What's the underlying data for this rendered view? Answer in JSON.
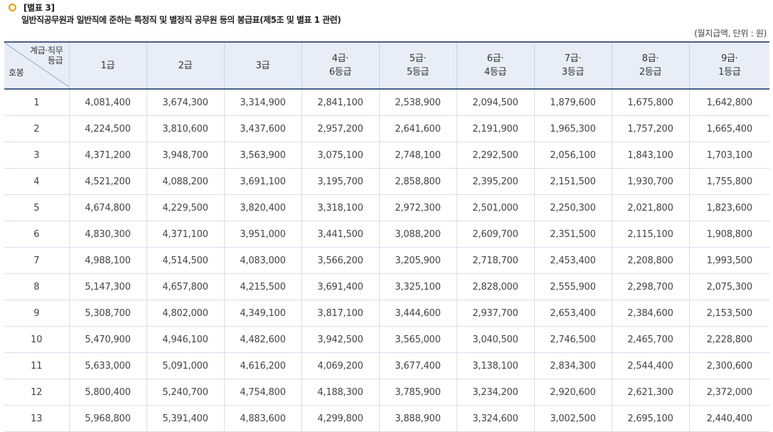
{
  "header": {
    "reference": "[별표 3]",
    "title": "일반직공무원과 일반직에 준하는 특정직 및 별정직 공무원 등의 봉급표(제5조 및 별표 1 관련)",
    "unit": "(월지급액, 단위 : 원)"
  },
  "colors": {
    "accent": "#f39800",
    "header_bg": "#e8eef8",
    "border_dark": "#4a5f8a"
  },
  "table": {
    "corner_top_line1": "계급·직무",
    "corner_top_line2": "등급",
    "corner_bottom": "호봉",
    "columns": [
      [
        "1급",
        ""
      ],
      [
        "2급",
        ""
      ],
      [
        "3급",
        ""
      ],
      [
        "4급·",
        "6등급"
      ],
      [
        "5급·",
        "5등급"
      ],
      [
        "6급·",
        "4등급"
      ],
      [
        "7급·",
        "3등급"
      ],
      [
        "8급·",
        "2등급"
      ],
      [
        "9급·",
        "1등급"
      ]
    ],
    "rows": [
      [
        "1",
        "4,081,400",
        "3,674,300",
        "3,314,900",
        "2,841,100",
        "2,538,900",
        "2,094,500",
        "1,879,600",
        "1,675,800",
        "1,642,800"
      ],
      [
        "2",
        "4,224,500",
        "3,810,600",
        "3,437,600",
        "2,957,200",
        "2,641,600",
        "2,191,900",
        "1,965,300",
        "1,757,200",
        "1,665,400"
      ],
      [
        "3",
        "4,371,200",
        "3,948,700",
        "3,563,900",
        "3,075,100",
        "2,748,100",
        "2,292,500",
        "2,056,100",
        "1,843,100",
        "1,703,100"
      ],
      [
        "4",
        "4,521,200",
        "4,088,200",
        "3,691,100",
        "3,195,700",
        "2,858,800",
        "2,395,200",
        "2,151,500",
        "1,930,700",
        "1,755,800"
      ],
      [
        "5",
        "4,674,800",
        "4,229,500",
        "3,820,400",
        "3,318,100",
        "2,972,300",
        "2,501,000",
        "2,250,300",
        "2,021,800",
        "1,823,600"
      ],
      [
        "6",
        "4,830,300",
        "4,371,100",
        "3,951,000",
        "3,441,500",
        "3,088,200",
        "2,609,700",
        "2,351,500",
        "2,115,100",
        "1,908,800"
      ],
      [
        "7",
        "4,988,100",
        "4,514,500",
        "4,083,000",
        "3,566,200",
        "3,205,900",
        "2,718,700",
        "2,453,400",
        "2,208,800",
        "1,993,500"
      ],
      [
        "8",
        "5,147,300",
        "4,657,800",
        "4,215,500",
        "3,691,400",
        "3,325,100",
        "2,828,000",
        "2,555,900",
        "2,298,700",
        "2,075,300"
      ],
      [
        "9",
        "5,308,700",
        "4,802,000",
        "4,349,100",
        "3,817,100",
        "3,444,600",
        "2,937,700",
        "2,653,400",
        "2,384,600",
        "2,153,500"
      ],
      [
        "10",
        "5,470,900",
        "4,946,100",
        "4,482,600",
        "3,942,500",
        "3,565,000",
        "3,040,500",
        "2,746,500",
        "2,465,700",
        "2,228,800"
      ],
      [
        "11",
        "5,633,000",
        "5,091,000",
        "4,616,200",
        "4,069,200",
        "3,677,400",
        "3,138,100",
        "2,834,300",
        "2,544,400",
        "2,300,600"
      ],
      [
        "12",
        "5,800,400",
        "5,240,700",
        "4,754,800",
        "4,188,300",
        "3,785,900",
        "3,234,200",
        "2,920,600",
        "2,621,300",
        "2,372,000"
      ],
      [
        "13",
        "5,968,800",
        "5,391,400",
        "4,883,600",
        "4,299,800",
        "3,888,900",
        "3,324,600",
        "3,002,500",
        "2,695,100",
        "2,440,400"
      ]
    ]
  }
}
